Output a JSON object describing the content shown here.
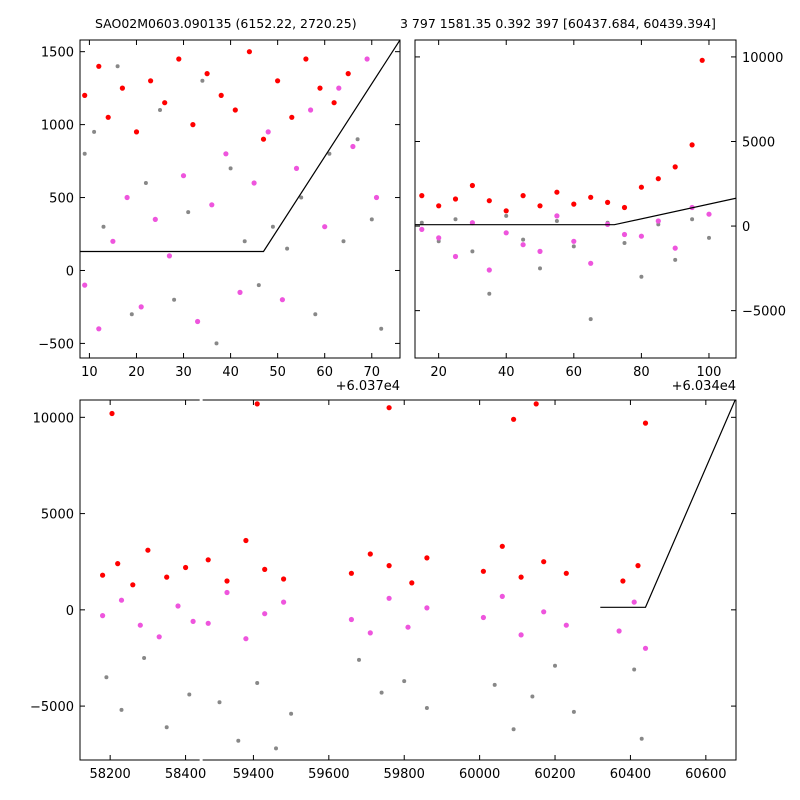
{
  "titles": {
    "left": "SAO02M0603.090135 (6152.22, 2720.25)",
    "right": "3 797 1581.35 0.392 397 [60437.684, 60439.394]"
  },
  "colors": {
    "grey": "#888888",
    "red": "#ff0000",
    "magenta": "#ee55dd",
    "line": "#000000"
  },
  "chart_data": [
    {
      "id": "top-left",
      "type": "scatter",
      "xlim": [
        8,
        76
      ],
      "ylim": [
        -600,
        1580
      ],
      "xticks": [
        10,
        20,
        30,
        40,
        50,
        60,
        70
      ],
      "yticks": [
        -500,
        0,
        500,
        1000,
        1500
      ],
      "x_offset_label": "+6.037e4",
      "series": [
        {
          "color": "grey",
          "points": [
            [
              9,
              800
            ],
            [
              11,
              950
            ],
            [
              13,
              300
            ],
            [
              16,
              1400
            ],
            [
              19,
              -300
            ],
            [
              22,
              600
            ],
            [
              25,
              1100
            ],
            [
              28,
              -200
            ],
            [
              31,
              400
            ],
            [
              34,
              1300
            ],
            [
              37,
              -500
            ],
            [
              40,
              700
            ],
            [
              43,
              200
            ],
            [
              46,
              -100
            ],
            [
              49,
              300
            ],
            [
              52,
              150
            ],
            [
              55,
              500
            ],
            [
              58,
              -300
            ],
            [
              61,
              800
            ],
            [
              64,
              200
            ],
            [
              67,
              900
            ],
            [
              70,
              350
            ],
            [
              72,
              -400
            ]
          ]
        },
        {
          "color": "red",
          "points": [
            [
              9,
              1200
            ],
            [
              12,
              1400
            ],
            [
              14,
              1050
            ],
            [
              17,
              1250
            ],
            [
              20,
              950
            ],
            [
              23,
              1300
            ],
            [
              26,
              1150
            ],
            [
              29,
              1450
            ],
            [
              32,
              1000
            ],
            [
              35,
              1350
            ],
            [
              38,
              1200
            ],
            [
              41,
              1100
            ],
            [
              44,
              1500
            ],
            [
              47,
              900
            ],
            [
              50,
              1300
            ],
            [
              53,
              1050
            ],
            [
              56,
              1450
            ],
            [
              59,
              1250
            ],
            [
              62,
              1150
            ],
            [
              65,
              1350
            ]
          ]
        },
        {
          "color": "magenta",
          "points": [
            [
              9,
              -100
            ],
            [
              12,
              -400
            ],
            [
              15,
              200
            ],
            [
              18,
              500
            ],
            [
              21,
              -250
            ],
            [
              24,
              350
            ],
            [
              27,
              100
            ],
            [
              30,
              650
            ],
            [
              33,
              -350
            ],
            [
              36,
              450
            ],
            [
              39,
              800
            ],
            [
              42,
              -150
            ],
            [
              45,
              600
            ],
            [
              48,
              950
            ],
            [
              51,
              -200
            ],
            [
              54,
              700
            ],
            [
              57,
              1100
            ],
            [
              60,
              300
            ],
            [
              63,
              1250
            ],
            [
              66,
              850
            ],
            [
              69,
              1450
            ],
            [
              71,
              500
            ]
          ]
        }
      ],
      "model_line": [
        [
          8,
          130
        ],
        [
          47,
          130
        ],
        [
          76,
          1580
        ]
      ]
    },
    {
      "id": "top-right",
      "type": "scatter",
      "xlim": [
        13,
        108
      ],
      "ylim": [
        -7800,
        11000
      ],
      "xticks": [
        20,
        40,
        60,
        80,
        100
      ],
      "yticks": [
        -5000,
        0,
        5000,
        10000
      ],
      "x_offset_label": "+6.034e4",
      "series": [
        {
          "color": "grey",
          "points": [
            [
              15,
              200
            ],
            [
              20,
              -900
            ],
            [
              25,
              400
            ],
            [
              30,
              -1500
            ],
            [
              35,
              -4000
            ],
            [
              40,
              600
            ],
            [
              45,
              -800
            ],
            [
              50,
              -2500
            ],
            [
              55,
              300
            ],
            [
              60,
              -1200
            ],
            [
              65,
              -5500
            ],
            [
              70,
              200
            ],
            [
              75,
              -1000
            ],
            [
              80,
              -3000
            ],
            [
              85,
              100
            ],
            [
              90,
              -2000
            ],
            [
              95,
              400
            ],
            [
              100,
              -700
            ]
          ]
        },
        {
          "color": "red",
          "points": [
            [
              15,
              1800
            ],
            [
              20,
              1200
            ],
            [
              25,
              1600
            ],
            [
              30,
              2400
            ],
            [
              35,
              1500
            ],
            [
              40,
              900
            ],
            [
              45,
              1800
            ],
            [
              50,
              1200
            ],
            [
              55,
              2000
            ],
            [
              60,
              1300
            ],
            [
              65,
              1700
            ],
            [
              70,
              1400
            ],
            [
              75,
              1100
            ],
            [
              80,
              2300
            ],
            [
              85,
              2800
            ],
            [
              90,
              3500
            ],
            [
              95,
              4800
            ],
            [
              98,
              9800
            ]
          ]
        },
        {
          "color": "magenta",
          "points": [
            [
              15,
              -200
            ],
            [
              20,
              -700
            ],
            [
              25,
              -1800
            ],
            [
              30,
              200
            ],
            [
              35,
              -2600
            ],
            [
              40,
              -400
            ],
            [
              45,
              -1100
            ],
            [
              50,
              -1500
            ],
            [
              55,
              600
            ],
            [
              60,
              -900
            ],
            [
              65,
              -2200
            ],
            [
              70,
              100
            ],
            [
              75,
              -500
            ],
            [
              80,
              -600
            ],
            [
              85,
              300
            ],
            [
              90,
              -1300
            ],
            [
              95,
              1100
            ],
            [
              100,
              700
            ]
          ]
        }
      ],
      "model_line": [
        [
          13,
          80
        ],
        [
          72,
          80
        ],
        [
          108,
          1650
        ]
      ]
    },
    {
      "id": "bottom",
      "type": "scatter",
      "xlim": [
        58120,
        60680
      ],
      "ylim": [
        -7800,
        10900
      ],
      "xticks": [
        58200,
        58400,
        59400,
        59600,
        59800,
        60000,
        60200,
        60400,
        60600
      ],
      "yticks": [
        -5000,
        0,
        5000,
        10000
      ],
      "broken_axis_gap": [
        58440,
        59260
      ],
      "series": [
        {
          "color": "grey",
          "points": [
            [
              58190,
              -3500
            ],
            [
              58230,
              -5200
            ],
            [
              58290,
              -2500
            ],
            [
              58350,
              -6100
            ],
            [
              58410,
              -4400
            ],
            [
              59310,
              -4800
            ],
            [
              59360,
              -6800
            ],
            [
              59410,
              -3800
            ],
            [
              59460,
              -7200
            ],
            [
              59500,
              -5400
            ],
            [
              59680,
              -2600
            ],
            [
              59740,
              -4300
            ],
            [
              59800,
              -3700
            ],
            [
              59860,
              -5100
            ],
            [
              60040,
              -3900
            ],
            [
              60090,
              -6200
            ],
            [
              60140,
              -4500
            ],
            [
              60200,
              -2900
            ],
            [
              60250,
              -5300
            ],
            [
              60410,
              -3100
            ],
            [
              60430,
              -6700
            ]
          ]
        },
        {
          "color": "red",
          "points": [
            [
              58180,
              1800
            ],
            [
              58220,
              2400
            ],
            [
              58260,
              1300
            ],
            [
              58300,
              3100
            ],
            [
              58350,
              1700
            ],
            [
              58400,
              2200
            ],
            [
              59280,
              2600
            ],
            [
              59330,
              1500
            ],
            [
              59380,
              3600
            ],
            [
              59430,
              2100
            ],
            [
              59480,
              1600
            ],
            [
              59660,
              1900
            ],
            [
              59710,
              2900
            ],
            [
              59760,
              2300
            ],
            [
              59820,
              1400
            ],
            [
              59860,
              2700
            ],
            [
              60010,
              2000
            ],
            [
              60060,
              3300
            ],
            [
              60110,
              1700
            ],
            [
              60170,
              2500
            ],
            [
              60230,
              1900
            ],
            [
              60380,
              1500
            ],
            [
              60420,
              2300
            ],
            [
              58205,
              10200
            ],
            [
              59410,
              10700
            ],
            [
              59760,
              10500
            ],
            [
              60090,
              9900
            ],
            [
              60150,
              10700
            ],
            [
              60440,
              9700
            ]
          ]
        },
        {
          "color": "magenta",
          "points": [
            [
              58180,
              -300
            ],
            [
              58230,
              500
            ],
            [
              58280,
              -800
            ],
            [
              58330,
              -1400
            ],
            [
              58380,
              200
            ],
            [
              58420,
              -600
            ],
            [
              59280,
              -700
            ],
            [
              59330,
              900
            ],
            [
              59380,
              -1500
            ],
            [
              59430,
              -200
            ],
            [
              59480,
              400
            ],
            [
              59660,
              -500
            ],
            [
              59710,
              -1200
            ],
            [
              59760,
              600
            ],
            [
              59810,
              -900
            ],
            [
              59860,
              100
            ],
            [
              60010,
              -400
            ],
            [
              60060,
              700
            ],
            [
              60110,
              -1300
            ],
            [
              60170,
              -100
            ],
            [
              60230,
              -800
            ],
            [
              60370,
              -1100
            ],
            [
              60410,
              400
            ],
            [
              60440,
              -2000
            ]
          ]
        }
      ],
      "model_line": [
        [
          60320,
          130
        ],
        [
          60440,
          130
        ],
        [
          60680,
          11000
        ]
      ]
    }
  ]
}
